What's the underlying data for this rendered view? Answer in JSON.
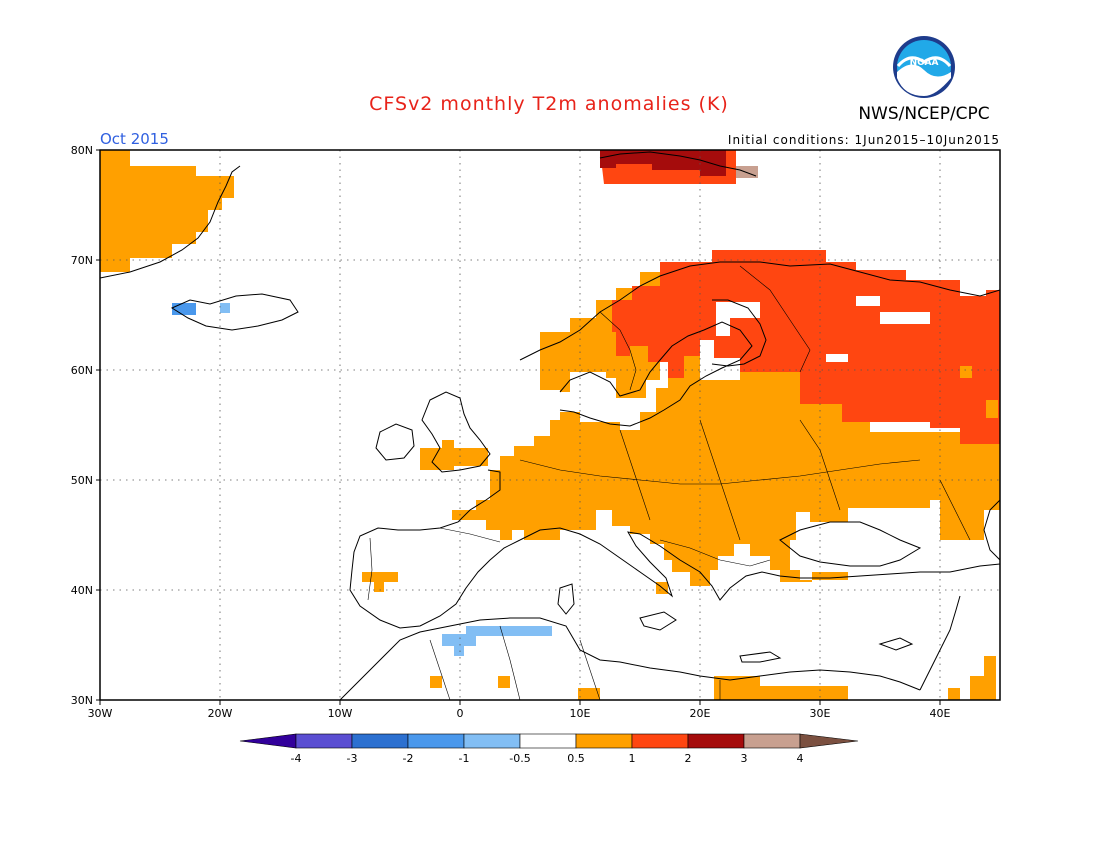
{
  "title": "CFSv2 monthly T2m anomalies (K)",
  "agency": "NWS/NCEP/CPC",
  "logo_text": "NOAA",
  "valid_month": "Oct 2015",
  "initial_conditions": "Initial conditions: 1Jun2015–10Jun2015",
  "colors": {
    "title": "#e8231a",
    "month": "#3060e0",
    "anomaly_palette": [
      "#32009b",
      "#5a4ed2",
      "#2c70d0",
      "#4a98ec",
      "#82bef4",
      "#ffffff",
      "#ffa000",
      "#ff4611",
      "#a50c0c",
      "#c8a090",
      "#7b5040"
    ]
  },
  "map": {
    "extent": {
      "lon": [
        -30,
        45
      ],
      "lat": [
        30,
        80
      ]
    },
    "lat_ticks": [
      "30N",
      "40N",
      "50N",
      "60N",
      "70N",
      "80N"
    ],
    "lon_ticks": [
      "30W",
      "20W",
      "10W",
      "0",
      "10E",
      "20E",
      "30E",
      "40E"
    ]
  },
  "colorbar": {
    "levels": [
      "-4",
      "-3",
      "-2",
      "-1",
      "-0.5",
      "0.5",
      "1",
      "2",
      "3",
      "4"
    ]
  },
  "anomaly_regions": [
    {
      "name": "Greenland east coast",
      "category": "0.5 to 1"
    },
    {
      "name": "Iceland northwest",
      "category": "-1 to -0.5"
    },
    {
      "name": "Svalbard",
      "category": "2 to 3"
    },
    {
      "name": "Scandinavia and Finland",
      "category": "1 to 2"
    },
    {
      "name": "Western Russia",
      "category": "1 to 2"
    },
    {
      "name": "Central and Eastern Europe",
      "category": "0.5 to 1"
    },
    {
      "name": "Algeria coast",
      "category": "-1 to -0.5"
    },
    {
      "name": "Eastern Mediterranean / Egypt",
      "category": "0.5 to 1"
    }
  ]
}
